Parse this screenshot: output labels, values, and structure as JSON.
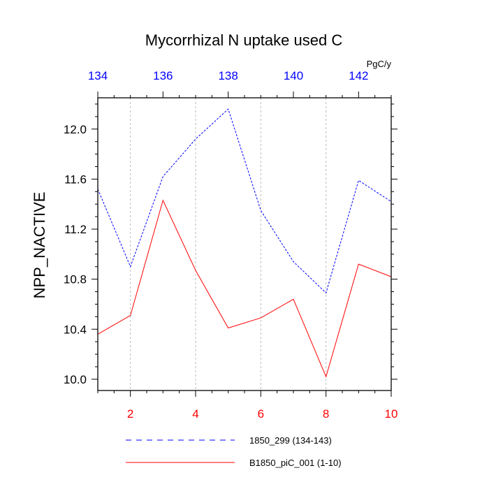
{
  "chart_data": {
    "type": "line",
    "title": "Mycorrhizal N uptake used C",
    "ylabel": "NPP_NACTIVE",
    "units": "PgC/y",
    "ylim": [
      9.91,
      12.25
    ],
    "yticks": [
      10.0,
      10.4,
      10.8,
      11.2,
      11.6,
      12.0
    ],
    "ytick_labels": [
      "10.0",
      "10.4",
      "10.8",
      "11.2",
      "11.6",
      "12.0"
    ],
    "bottom_axis": {
      "xlim": [
        1,
        10
      ],
      "ticks": [
        2,
        4,
        6,
        8,
        10
      ],
      "tick_labels": [
        "2",
        "4",
        "6",
        "8",
        "10"
      ],
      "color": "#ff0000"
    },
    "top_axis": {
      "xlim": [
        134,
        143
      ],
      "ticks": [
        134,
        136,
        138,
        140,
        142
      ],
      "tick_labels": [
        "134",
        "136",
        "138",
        "140",
        "142"
      ],
      "color": "#0000ff"
    },
    "grid": "vertical dotted at bottom major ticks",
    "legend_placement": "bottom",
    "series": [
      {
        "name": "1850_299 (134-143)",
        "axis": "top",
        "color": "#0000ff",
        "dash": "dashed",
        "x": [
          134,
          135,
          136,
          137,
          138,
          139,
          140,
          141,
          142,
          143
        ],
        "values": [
          11.52,
          10.9,
          11.62,
          11.92,
          12.16,
          11.35,
          10.94,
          10.69,
          11.59,
          11.42
        ]
      },
      {
        "name": "B1850_piC_001 (1-10)",
        "axis": "bottom",
        "color": "#ff0000",
        "dash": "solid",
        "x": [
          1,
          2,
          3,
          4,
          5,
          6,
          7,
          8,
          9,
          10
        ],
        "values": [
          10.36,
          10.51,
          11.43,
          10.87,
          10.41,
          10.49,
          10.64,
          10.02,
          10.92,
          10.82
        ]
      }
    ]
  }
}
